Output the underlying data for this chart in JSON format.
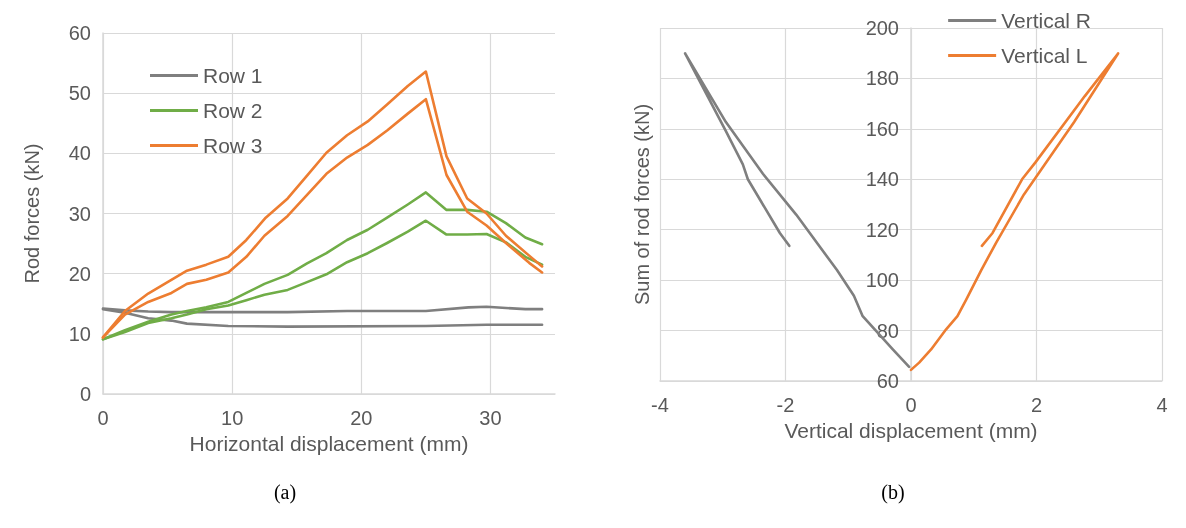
{
  "chart_data": [
    {
      "type": "line",
      "xlabel": "Horizontal displacement (mm)",
      "ylabel": "Rod forces (kN)",
      "annotations": [
        "(a)"
      ],
      "xlim": [
        0,
        35
      ],
      "xticks": [
        0,
        10,
        20,
        30
      ],
      "ylim": [
        0,
        60
      ],
      "yticks": [
        0,
        10,
        20,
        30,
        40,
        50,
        60
      ],
      "grid": true,
      "legend": "top left",
      "line_style": "solid",
      "marker": "none",
      "series": [
        {
          "name": "Row 1",
          "color": "#7f7f7f",
          "x": [
            0,
            1.7,
            3.5,
            5.3,
            6.5,
            9.7,
            14.3,
            25,
            29.7,
            34
          ],
          "values": [
            14.1,
            13.5,
            12.6,
            12.2,
            11.7,
            11.3,
            11.2,
            11.3,
            11.5,
            11.5
          ]
        },
        {
          "color": "#7f7f7f",
          "x": [
            0,
            1.7,
            3.5,
            5.3,
            9.7,
            14.3,
            18.9,
            25,
            28.3,
            29.7,
            32.7,
            34
          ],
          "values": [
            14.2,
            13.9,
            13.7,
            13.6,
            13.6,
            13.6,
            13.8,
            13.8,
            14.4,
            14.5,
            14.1,
            14.1
          ]
        },
        {
          "name": "Row 2",
          "color": "#70ad47",
          "x": [
            0,
            1.7,
            3.5,
            5.3,
            6.5,
            8,
            9.7,
            11.1,
            12.5,
            14.3,
            15.8,
            17.3,
            18.9,
            20.5,
            22,
            23.6,
            25,
            26.6,
            28.2,
            29.7,
            31.2,
            32.7,
            34
          ],
          "values": [
            9.1,
            10.3,
            11.8,
            12.6,
            13.2,
            14.1,
            14.7,
            15.6,
            16.5,
            17.3,
            18.6,
            19.9,
            21.9,
            23.4,
            25.1,
            27,
            28.8,
            26.5,
            26.5,
            26.6,
            25.2,
            22.8,
            21.5
          ]
        },
        {
          "color": "#70ad47",
          "x": [
            0,
            1.7,
            3.5,
            5.3,
            6.5,
            8,
            9.7,
            11.1,
            12.5,
            14.3,
            15.8,
            17.3,
            18.9,
            20.5,
            22,
            23.6,
            25,
            26.6,
            28.2,
            29.7,
            31.2,
            32.7,
            34
          ],
          "values": [
            9.1,
            10.6,
            12,
            13.2,
            13.8,
            14.4,
            15.3,
            16.8,
            18.3,
            19.8,
            21.7,
            23.4,
            25.6,
            27.3,
            29.3,
            31.5,
            33.5,
            30.6,
            30.6,
            30.3,
            28.4,
            26,
            24.9
          ]
        },
        {
          "name": "Row 3",
          "color": "#ed7d31",
          "x": [
            0,
            1.7,
            3.5,
            5.3,
            6.5,
            8,
            9.7,
            11.1,
            12.5,
            14.3,
            17.3,
            18.9,
            20.5,
            22,
            23.6,
            25,
            26.6,
            28.2,
            29.7,
            31.2,
            33,
            34
          ],
          "values": [
            9.4,
            13.2,
            15.3,
            16.8,
            18.3,
            19,
            20.2,
            22.8,
            26.3,
            29.6,
            36.6,
            39.3,
            41.4,
            43.8,
            46.6,
            49,
            36.4,
            30.3,
            28,
            25.1,
            21.8,
            20.2
          ]
        },
        {
          "color": "#ed7d31",
          "x": [
            0,
            1.7,
            3.5,
            5,
            6.5,
            8,
            9.7,
            11.1,
            12.6,
            14.3,
            15.8,
            17.3,
            18.9,
            20.5,
            22,
            23.6,
            25,
            26.6,
            28.2,
            29.7,
            31.2,
            33,
            34
          ],
          "values": [
            9.4,
            13.8,
            16.7,
            18.6,
            20.5,
            21.5,
            22.8,
            25.6,
            29.3,
            32.5,
            36.3,
            40.1,
            43,
            45.3,
            48.1,
            51.2,
            53.6,
            39.5,
            32.5,
            30,
            26.3,
            23,
            21.2
          ]
        }
      ]
    },
    {
      "type": "line",
      "xlabel": "Vertical displacement (mm)",
      "ylabel": "Sum of rod forces (kN)",
      "annotations": [
        "(b)"
      ],
      "xlim": [
        -4,
        4
      ],
      "xticks": [
        -4,
        -2,
        0,
        2,
        4
      ],
      "ylim": [
        60,
        200
      ],
      "yticks": [
        60,
        80,
        100,
        120,
        140,
        160,
        180,
        200
      ],
      "grid": true,
      "legend": "top right",
      "line_style": "solid",
      "marker": "none",
      "series": [
        {
          "name": "Vertical R",
          "color": "#7f7f7f",
          "x": [
            -1.94,
            -2.09,
            -2.6,
            -2.68,
            -2.95,
            -3.6,
            -2.95,
            -2.36,
            -1.83,
            -1.18,
            -0.91,
            -0.77,
            -0.29,
            -0.03
          ],
          "values": [
            113.6,
            118.7,
            140,
            145.9,
            159.1,
            189.9,
            162.7,
            142.2,
            126,
            104,
            93.8,
            85.7,
            72.5,
            65.6
          ]
        },
        {
          "name": "Vertical L",
          "color": "#ed7d31",
          "x": [
            0,
            0.13,
            0.32,
            0.56,
            0.74,
            0.88,
            1.12,
            1.36,
            1.8,
            2.6,
            3.3,
            2.77,
            1.98,
            1.77,
            1.3,
            1.13
          ],
          "values": [
            64.4,
            67.3,
            72.5,
            80.5,
            85.7,
            92.3,
            104,
            115,
            134,
            162.7,
            189.9,
            173,
            146.6,
            140,
            118.7,
            113.6
          ]
        }
      ]
    }
  ]
}
